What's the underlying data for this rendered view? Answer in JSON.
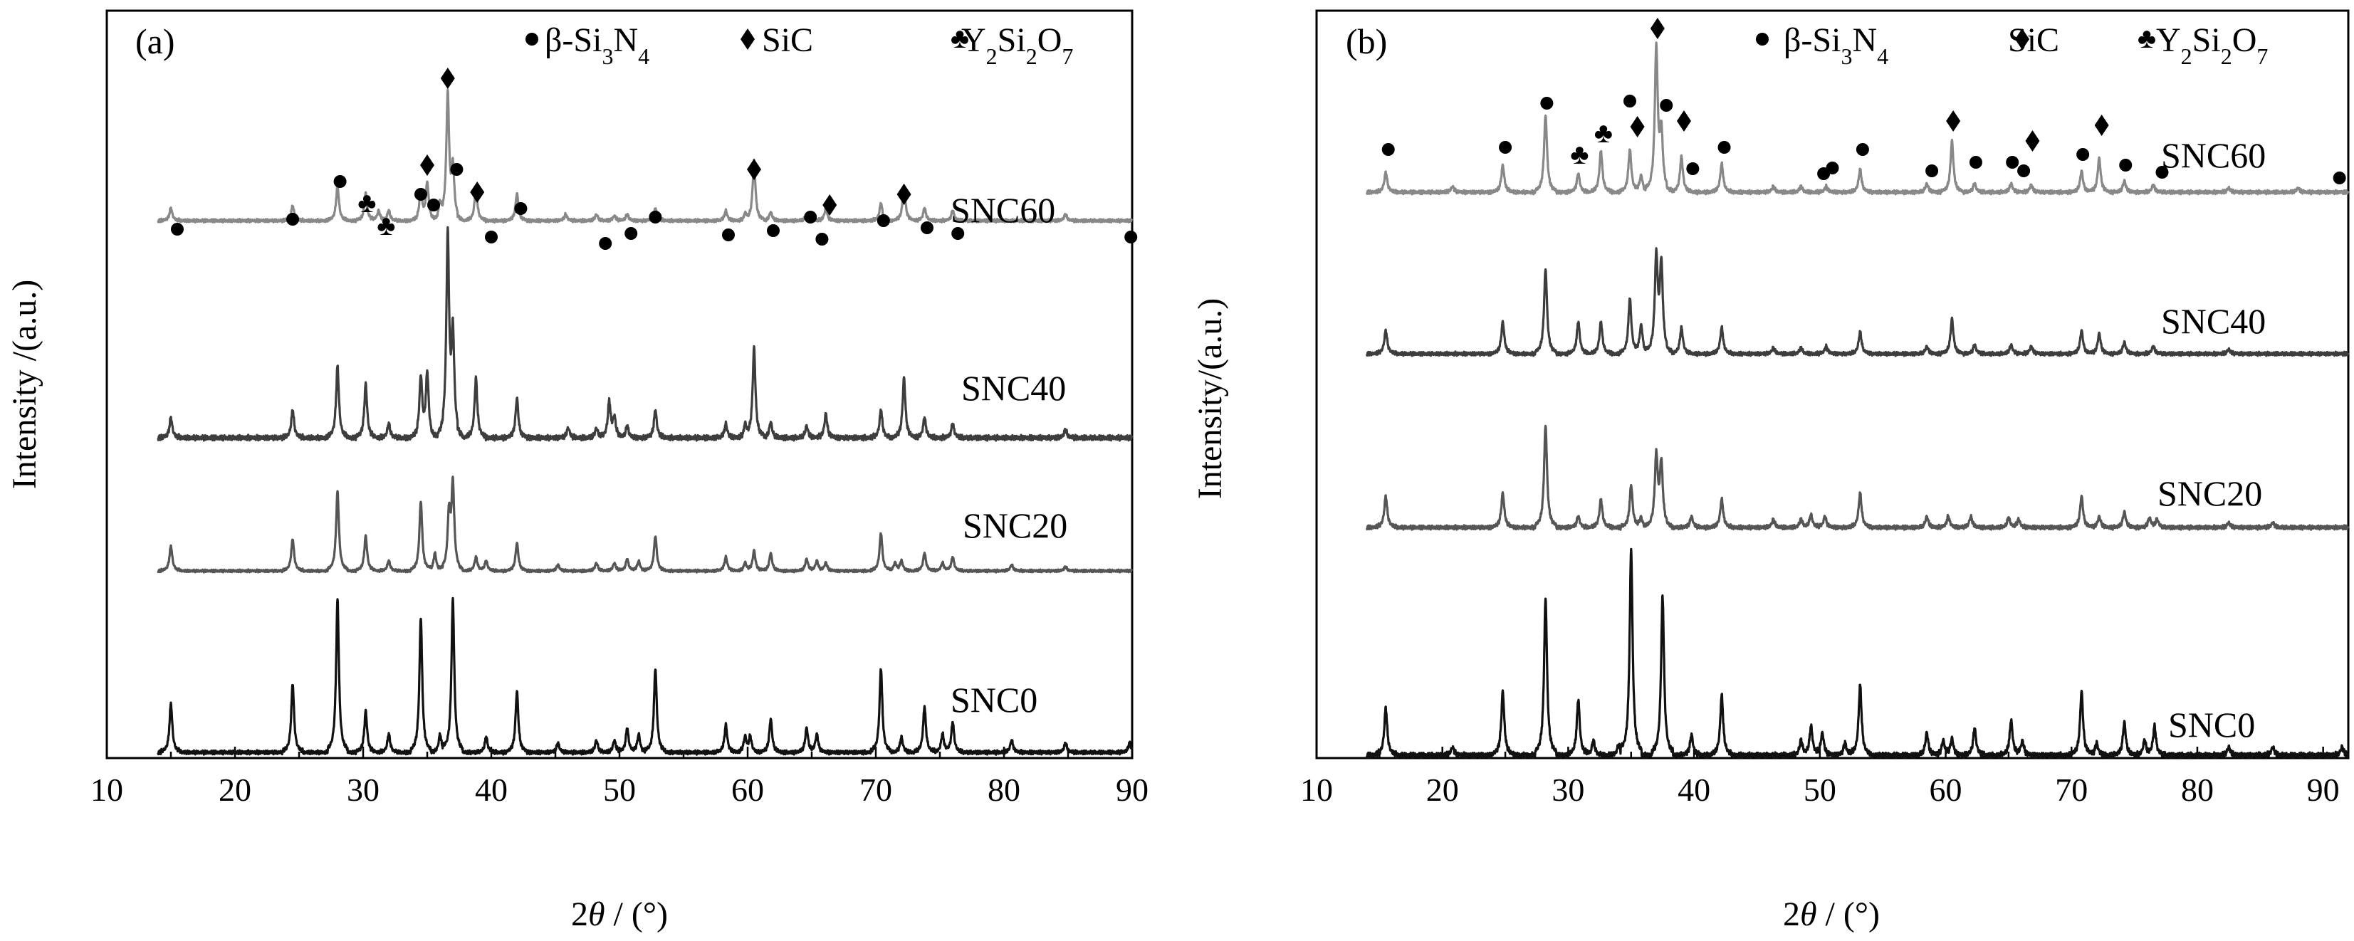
{
  "chart_data": [
    {
      "panel": "(a)",
      "type": "line",
      "xlabel_var": "2θ",
      "xlabel_unit": " / (°)",
      "ylabel": "Intensity /(a.u.)",
      "xlim": [
        10,
        90
      ],
      "x_ticks": [
        10,
        20,
        30,
        40,
        50,
        60,
        70,
        80,
        90
      ],
      "grid": false,
      "legend_position": "top",
      "legend": [
        {
          "symbol": "●",
          "label": "β-Si₃N₄",
          "phase": "beta-Si3N4"
        },
        {
          "symbol": "♦",
          "label": "SiC",
          "phase": "SiC"
        },
        {
          "symbol": "♣",
          "label": "Y₂Si₂O₇",
          "phase": "Y2Si2O7"
        }
      ],
      "series": [
        {
          "name": "SNC0",
          "color": "#111111",
          "peak_width": 0.13,
          "peaks": [
            [
              15.0,
              0.32
            ],
            [
              24.5,
              0.45
            ],
            [
              28.0,
              1.0
            ],
            [
              30.2,
              0.27
            ],
            [
              32.0,
              0.12
            ],
            [
              34.5,
              0.88
            ],
            [
              36.0,
              0.12
            ],
            [
              37.0,
              1.0
            ],
            [
              39.6,
              0.1
            ],
            [
              42.0,
              0.4
            ],
            [
              45.2,
              0.06
            ],
            [
              48.2,
              0.08
            ],
            [
              49.6,
              0.08
            ],
            [
              50.6,
              0.16
            ],
            [
              51.5,
              0.12
            ],
            [
              52.8,
              0.55
            ],
            [
              58.3,
              0.18
            ],
            [
              59.8,
              0.1
            ],
            [
              60.2,
              0.1
            ],
            [
              61.8,
              0.22
            ],
            [
              64.6,
              0.16
            ],
            [
              65.4,
              0.12
            ],
            [
              70.4,
              0.55
            ],
            [
              72.0,
              0.1
            ],
            [
              73.8,
              0.3
            ],
            [
              75.2,
              0.12
            ],
            [
              76.0,
              0.2
            ],
            [
              80.6,
              0.08
            ],
            [
              84.8,
              0.06
            ],
            [
              89.8,
              0.06
            ]
          ]
        },
        {
          "name": "SNC20",
          "color": "#555555",
          "peak_width": 0.13,
          "peaks": [
            [
              15.0,
              0.25
            ],
            [
              24.5,
              0.32
            ],
            [
              28.0,
              0.8
            ],
            [
              30.2,
              0.35
            ],
            [
              32.0,
              0.1
            ],
            [
              34.5,
              0.7
            ],
            [
              35.6,
              0.18
            ],
            [
              36.7,
              0.55
            ],
            [
              37.0,
              0.85
            ],
            [
              38.8,
              0.14
            ],
            [
              39.6,
              0.1
            ],
            [
              42.0,
              0.28
            ],
            [
              45.2,
              0.06
            ],
            [
              48.2,
              0.08
            ],
            [
              49.6,
              0.08
            ],
            [
              50.6,
              0.12
            ],
            [
              51.5,
              0.1
            ],
            [
              52.8,
              0.35
            ],
            [
              58.3,
              0.14
            ],
            [
              59.8,
              0.08
            ],
            [
              60.5,
              0.2
            ],
            [
              61.8,
              0.18
            ],
            [
              64.6,
              0.12
            ],
            [
              65.4,
              0.1
            ],
            [
              66.1,
              0.08
            ],
            [
              70.4,
              0.38
            ],
            [
              71.5,
              0.08
            ],
            [
              72.0,
              0.1
            ],
            [
              73.8,
              0.18
            ],
            [
              75.2,
              0.08
            ],
            [
              76.0,
              0.14
            ],
            [
              80.6,
              0.06
            ],
            [
              84.8,
              0.04
            ]
          ]
        },
        {
          "name": "SNC40",
          "color": "#3d3d3d",
          "peak_width": 0.13,
          "peaks": [
            [
              15.0,
              0.1
            ],
            [
              24.5,
              0.14
            ],
            [
              28.0,
              0.36
            ],
            [
              30.2,
              0.27
            ],
            [
              32.0,
              0.07
            ],
            [
              34.5,
              0.3
            ],
            [
              35.0,
              0.32
            ],
            [
              36.6,
              1.0
            ],
            [
              37.0,
              0.5
            ],
            [
              38.8,
              0.3
            ],
            [
              42.0,
              0.2
            ],
            [
              46.0,
              0.05
            ],
            [
              48.2,
              0.05
            ],
            [
              49.2,
              0.18
            ],
            [
              49.6,
              0.1
            ],
            [
              50.6,
              0.06
            ],
            [
              52.8,
              0.14
            ],
            [
              58.3,
              0.07
            ],
            [
              59.8,
              0.06
            ],
            [
              60.5,
              0.45
            ],
            [
              61.8,
              0.08
            ],
            [
              64.6,
              0.06
            ],
            [
              66.1,
              0.12
            ],
            [
              70.4,
              0.14
            ],
            [
              72.2,
              0.3
            ],
            [
              73.8,
              0.1
            ],
            [
              76.0,
              0.07
            ],
            [
              84.8,
              0.04
            ]
          ]
        },
        {
          "name": "SNC60",
          "color": "#888888",
          "peak_width": 0.13,
          "peaks": [
            [
              15.0,
              0.1
            ],
            [
              24.5,
              0.12
            ],
            [
              28.0,
              0.28
            ],
            [
              30.2,
              0.22
            ],
            [
              31.2,
              0.08
            ],
            [
              32.0,
              0.08
            ],
            [
              34.5,
              0.24
            ],
            [
              35.0,
              0.3
            ],
            [
              36.0,
              0.12
            ],
            [
              36.6,
              1.0
            ],
            [
              37.0,
              0.4
            ],
            [
              38.8,
              0.26
            ],
            [
              42.0,
              0.22
            ],
            [
              45.8,
              0.05
            ],
            [
              48.2,
              0.05
            ],
            [
              49.6,
              0.04
            ],
            [
              50.6,
              0.05
            ],
            [
              52.8,
              0.1
            ],
            [
              58.3,
              0.08
            ],
            [
              59.8,
              0.05
            ],
            [
              60.5,
              0.48
            ],
            [
              61.8,
              0.07
            ],
            [
              64.6,
              0.05
            ],
            [
              66.1,
              0.1
            ],
            [
              70.4,
              0.14
            ],
            [
              72.2,
              0.28
            ],
            [
              73.8,
              0.1
            ],
            [
              76.0,
              0.08
            ],
            [
              84.8,
              0.05
            ]
          ]
        }
      ]
    },
    {
      "panel": "(b)",
      "type": "line",
      "xlabel_var": "2θ",
      "xlabel_unit": " / (°)",
      "ylabel": "Intensity/(a.u.)",
      "xlim": [
        10,
        92
      ],
      "x_ticks": [
        10,
        20,
        30,
        40,
        50,
        60,
        70,
        80,
        90
      ],
      "grid": false,
      "legend_position": "top",
      "legend": [
        {
          "symbol": "●",
          "label": "β-Si₃N₄",
          "phase": "beta-Si3N4"
        },
        {
          "symbol": "♦",
          "label": "SiC",
          "phase": "SiC"
        },
        {
          "symbol": "♣",
          "label": "Y₂Si₂O₇",
          "phase": "Y2Si2O7"
        }
      ],
      "series": [
        {
          "name": "SNC0",
          "color": "#111111",
          "peak_width": 0.14,
          "peaks": [
            [
              15.5,
              0.23
            ],
            [
              20.8,
              0.04
            ],
            [
              24.8,
              0.31
            ],
            [
              28.2,
              0.76
            ],
            [
              30.8,
              0.27
            ],
            [
              32.0,
              0.07
            ],
            [
              34.0,
              0.05
            ],
            [
              35.0,
              1.0
            ],
            [
              37.5,
              0.77
            ],
            [
              39.8,
              0.1
            ],
            [
              42.2,
              0.29
            ],
            [
              48.5,
              0.07
            ],
            [
              49.3,
              0.14
            ],
            [
              50.2,
              0.11
            ],
            [
              52.0,
              0.06
            ],
            [
              53.2,
              0.34
            ],
            [
              58.5,
              0.11
            ],
            [
              59.8,
              0.07
            ],
            [
              60.5,
              0.08
            ],
            [
              62.3,
              0.13
            ],
            [
              65.2,
              0.17
            ],
            [
              66.1,
              0.07
            ],
            [
              70.8,
              0.31
            ],
            [
              72.0,
              0.06
            ],
            [
              74.2,
              0.16
            ],
            [
              75.8,
              0.07
            ],
            [
              76.6,
              0.14
            ],
            [
              82.5,
              0.04
            ],
            [
              86.0,
              0.04
            ],
            [
              91.5,
              0.04
            ]
          ]
        },
        {
          "name": "SNC20",
          "color": "#555555",
          "peak_width": 0.14,
          "peaks": [
            [
              15.5,
              0.2
            ],
            [
              24.8,
              0.22
            ],
            [
              28.2,
              0.65
            ],
            [
              30.8,
              0.07
            ],
            [
              32.6,
              0.18
            ],
            [
              35.0,
              0.27
            ],
            [
              35.8,
              0.06
            ],
            [
              37.0,
              0.45
            ],
            [
              37.4,
              0.4
            ],
            [
              39.8,
              0.07
            ],
            [
              42.2,
              0.18
            ],
            [
              46.3,
              0.05
            ],
            [
              48.5,
              0.05
            ],
            [
              49.3,
              0.08
            ],
            [
              50.4,
              0.07
            ],
            [
              53.2,
              0.22
            ],
            [
              58.5,
              0.07
            ],
            [
              60.2,
              0.07
            ],
            [
              62.0,
              0.07
            ],
            [
              65.0,
              0.06
            ],
            [
              65.8,
              0.05
            ],
            [
              70.8,
              0.2
            ],
            [
              72.2,
              0.07
            ],
            [
              74.2,
              0.1
            ],
            [
              76.2,
              0.06
            ],
            [
              76.8,
              0.05
            ],
            [
              82.5,
              0.03
            ],
            [
              86.0,
              0.03
            ]
          ]
        },
        {
          "name": "SNC40",
          "color": "#3d3d3d",
          "peak_width": 0.14,
          "peaks": [
            [
              15.5,
              0.16
            ],
            [
              24.8,
              0.22
            ],
            [
              28.2,
              0.58
            ],
            [
              30.8,
              0.22
            ],
            [
              32.6,
              0.22
            ],
            [
              34.9,
              0.38
            ],
            [
              35.8,
              0.2
            ],
            [
              37.0,
              0.65
            ],
            [
              37.4,
              0.6
            ],
            [
              39.0,
              0.18
            ],
            [
              42.2,
              0.18
            ],
            [
              46.3,
              0.04
            ],
            [
              48.5,
              0.04
            ],
            [
              50.5,
              0.05
            ],
            [
              53.2,
              0.15
            ],
            [
              58.5,
              0.05
            ],
            [
              60.5,
              0.24
            ],
            [
              62.3,
              0.06
            ],
            [
              65.2,
              0.06
            ],
            [
              66.8,
              0.05
            ],
            [
              70.8,
              0.16
            ],
            [
              72.2,
              0.14
            ],
            [
              74.2,
              0.08
            ],
            [
              76.5,
              0.05
            ],
            [
              82.5,
              0.03
            ]
          ]
        },
        {
          "name": "SNC60",
          "color": "#888888",
          "peak_width": 0.14,
          "peaks": [
            [
              15.5,
              0.14
            ],
            [
              20.8,
              0.04
            ],
            [
              24.8,
              0.19
            ],
            [
              28.2,
              0.54
            ],
            [
              30.8,
              0.13
            ],
            [
              32.6,
              0.29
            ],
            [
              34.9,
              0.3
            ],
            [
              35.8,
              0.12
            ],
            [
              37.0,
              1.0
            ],
            [
              37.4,
              0.4
            ],
            [
              39.0,
              0.25
            ],
            [
              42.2,
              0.2
            ],
            [
              46.3,
              0.04
            ],
            [
              48.5,
              0.04
            ],
            [
              50.5,
              0.04
            ],
            [
              53.2,
              0.16
            ],
            [
              58.5,
              0.06
            ],
            [
              60.5,
              0.36
            ],
            [
              62.3,
              0.06
            ],
            [
              65.2,
              0.06
            ],
            [
              66.8,
              0.05
            ],
            [
              70.8,
              0.15
            ],
            [
              72.2,
              0.24
            ],
            [
              74.2,
              0.08
            ],
            [
              76.5,
              0.05
            ],
            [
              82.5,
              0.03
            ],
            [
              88.0,
              0.03
            ]
          ]
        }
      ]
    }
  ]
}
